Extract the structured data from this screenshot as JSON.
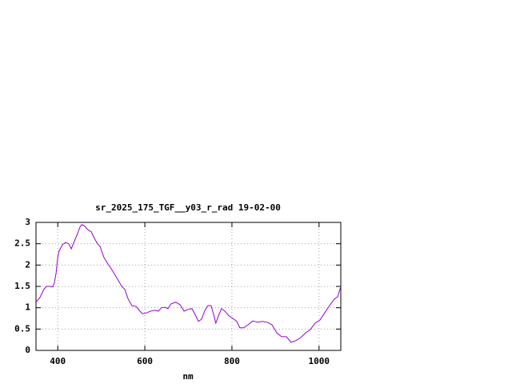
{
  "chart_data": {
    "type": "line",
    "title": "sr_2025_175_TGF__y03_r_rad 19-02-00",
    "x_label": "nm",
    "x": [
      350,
      359,
      368,
      374,
      381,
      389,
      392,
      396,
      400,
      403,
      411,
      418,
      425,
      431,
      436,
      444,
      451,
      455,
      462,
      469,
      477,
      484,
      491,
      497,
      506,
      515,
      525,
      536,
      547,
      554,
      561,
      570,
      580,
      587,
      594,
      604,
      613,
      624,
      631,
      638,
      646,
      653,
      660,
      671,
      681,
      690,
      699,
      708,
      716,
      723,
      730,
      738,
      745,
      752,
      758,
      763,
      769,
      776,
      784,
      793,
      802,
      811,
      818,
      827,
      837,
      848,
      859,
      870,
      881,
      892,
      903,
      914,
      925,
      936,
      947,
      958,
      969,
      980,
      991,
      1002,
      1013,
      1024,
      1035,
      1043,
      1050
    ],
    "series": [
      {
        "color": "#9400d3",
        "values": [
          1.13,
          1.24,
          1.43,
          1.5,
          1.5,
          1.49,
          1.58,
          1.8,
          2.18,
          2.33,
          2.48,
          2.53,
          2.5,
          2.38,
          2.51,
          2.7,
          2.89,
          2.95,
          2.91,
          2.83,
          2.78,
          2.63,
          2.5,
          2.44,
          2.18,
          2.03,
          1.88,
          1.69,
          1.5,
          1.43,
          1.22,
          1.05,
          1.03,
          0.94,
          0.86,
          0.88,
          0.92,
          0.94,
          0.92,
          1.0,
          1.01,
          0.98,
          1.09,
          1.13,
          1.07,
          0.92,
          0.96,
          0.98,
          0.83,
          0.68,
          0.73,
          0.94,
          1.05,
          1.05,
          0.84,
          0.64,
          0.81,
          0.98,
          0.92,
          0.81,
          0.75,
          0.68,
          0.53,
          0.53,
          0.6,
          0.69,
          0.66,
          0.68,
          0.66,
          0.6,
          0.41,
          0.32,
          0.32,
          0.19,
          0.23,
          0.3,
          0.41,
          0.49,
          0.64,
          0.71,
          0.88,
          1.05,
          1.2,
          1.26,
          1.5
        ]
      }
    ],
    "xlim": [
      350,
      1050
    ],
    "xticks": [
      400,
      600,
      800,
      1000
    ],
    "ylim": [
      0,
      3
    ],
    "yticks": [
      0,
      0.5,
      1,
      1.5,
      2,
      2.5,
      3
    ],
    "grid": true
  }
}
